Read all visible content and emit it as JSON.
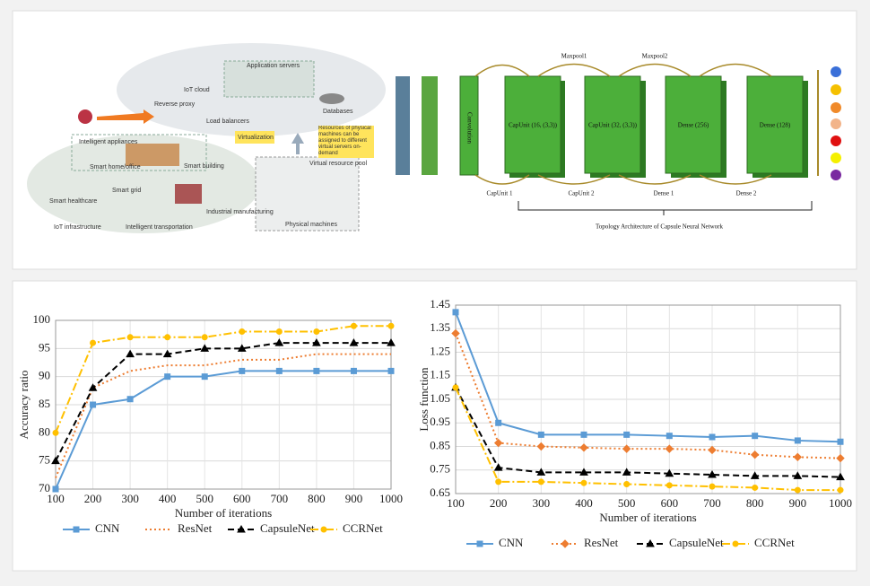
{
  "diagrams": {
    "iot": {
      "cloud": "IoT cloud",
      "app_servers": "Application servers",
      "reverse_proxy": "Reverse proxy",
      "load_balancers": "Load balancers",
      "databases": "Databases",
      "virtualization": "Virtualization",
      "note": "Resources of physical machines can be assigned to different virtual servers on-demand",
      "pool": "Virtual resource pool",
      "physical": "Physical machines",
      "appliances": "Intelligent appliances",
      "home": "Smart home/office",
      "building": "Smart building",
      "grid": "Smart grid",
      "healthcare": "Smart healthcare",
      "industry": "Industrial manufacturing",
      "transport": "Intelligent transportation",
      "infrastructure": "IoT infrastructure"
    },
    "capsule": {
      "conv": "Convolution",
      "maxpool1": "Maxpool1",
      "maxpool2": "Maxpool2",
      "layers": [
        "CapUnit (16, (3,3))",
        "CapUnit (32, (3,3))",
        "Dense (256)",
        "Dense (128)"
      ],
      "bottom": [
        "CapUnit 1",
        "CapUnit 2",
        "Dense 1",
        "Dense 2"
      ],
      "title": "Topology Architecture of Capsule Neural Network"
    }
  },
  "chart_data": [
    {
      "type": "line",
      "x_label": "Number of iterations",
      "y_label": "Accuracy ratio",
      "x": [
        100,
        200,
        300,
        400,
        500,
        600,
        700,
        800,
        900,
        1000
      ],
      "xlim": [
        100,
        1000
      ],
      "xticks": [
        100,
        200,
        300,
        400,
        500,
        600,
        700,
        800,
        900,
        1000
      ],
      "ylim": [
        70,
        100
      ],
      "yticks": [
        70,
        75,
        80,
        85,
        90,
        95,
        100
      ],
      "grid": true,
      "legend": "bottom",
      "series": [
        {
          "name": "CNN",
          "color": "#5b9bd5",
          "dash": "solid",
          "marker": "square",
          "values": [
            70,
            85,
            86,
            90,
            90,
            91,
            91,
            91,
            91,
            91
          ]
        },
        {
          "name": "ResNet",
          "color": "#ed7d31",
          "dash": "dotted",
          "marker": "none",
          "values": [
            72,
            88,
            91,
            92,
            92,
            93,
            93,
            94,
            94,
            94
          ]
        },
        {
          "name": "CapsuleNet",
          "color": "#000000",
          "dash": "dashed",
          "marker": "triangle",
          "values": [
            75,
            88,
            94,
            94,
            95,
            95,
            96,
            96,
            96,
            96
          ]
        },
        {
          "name": "CCRNet",
          "color": "#ffc000",
          "dash": "dashdot",
          "marker": "circle",
          "values": [
            80,
            96,
            97,
            97,
            97,
            98,
            98,
            98,
            99,
            99
          ]
        }
      ]
    },
    {
      "type": "line",
      "x_label": "Number of iterations",
      "y_label": "Loss function",
      "x": [
        100,
        200,
        300,
        400,
        500,
        600,
        700,
        800,
        900,
        1000
      ],
      "xlim": [
        100,
        1000
      ],
      "xticks": [
        100,
        200,
        300,
        400,
        500,
        600,
        700,
        800,
        900,
        1000
      ],
      "ylim": [
        0.65,
        1.45
      ],
      "yticks": [
        0.65,
        0.75,
        0.85,
        0.95,
        1.05,
        1.15,
        1.25,
        1.35,
        1.45
      ],
      "grid": true,
      "legend": "bottom",
      "series": [
        {
          "name": "CNN",
          "color": "#5b9bd5",
          "dash": "solid",
          "marker": "square",
          "values": [
            1.42,
            0.95,
            0.9,
            0.9,
            0.9,
            0.895,
            0.89,
            0.895,
            0.875,
            0.87
          ]
        },
        {
          "name": "ResNet",
          "color": "#ed7d31",
          "dash": "dotted",
          "marker": "diamond",
          "values": [
            1.33,
            0.865,
            0.85,
            0.845,
            0.84,
            0.84,
            0.835,
            0.815,
            0.805,
            0.8
          ]
        },
        {
          "name": "CapsuleNet",
          "color": "#000000",
          "dash": "dashed",
          "marker": "triangle",
          "values": [
            1.1,
            0.76,
            0.74,
            0.74,
            0.74,
            0.735,
            0.73,
            0.725,
            0.725,
            0.72
          ]
        },
        {
          "name": "CCRNet",
          "color": "#ffc000",
          "dash": "dashdot",
          "marker": "circle",
          "values": [
            1.1,
            0.7,
            0.7,
            0.695,
            0.69,
            0.685,
            0.68,
            0.675,
            0.665,
            0.665
          ]
        }
      ]
    }
  ]
}
